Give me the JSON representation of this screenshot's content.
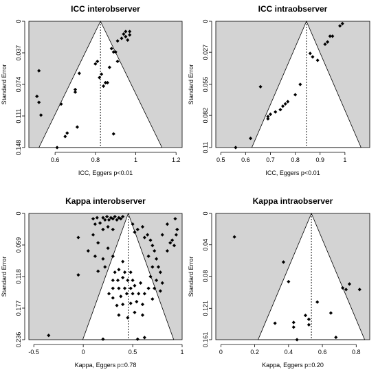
{
  "chart_data": [
    {
      "type": "scatter",
      "title": "ICC interobserver",
      "xlabel": "ICC, Eggers p<0.01",
      "ylabel": "Standard Error",
      "xlim": [
        0.47,
        1.23
      ],
      "ylim": [
        0.148,
        0
      ],
      "y_reversed": true,
      "xticks": [
        0.6,
        0.8,
        1.0,
        1.2
      ],
      "xtick_labels": [
        "0.6",
        "0.8",
        "1",
        "1.2"
      ],
      "yticks": [
        0,
        0.037,
        0.074,
        0.111,
        0.148
      ],
      "ytick_labels": [
        "0",
        "0.037",
        "0.074",
        "0.111",
        "0.148"
      ],
      "summary_estimate": 0.825,
      "funnel_base_range": [
        0.52,
        1.13
      ],
      "points": [
        {
          "x": 0.52,
          "y": 0.058
        },
        {
          "x": 0.51,
          "y": 0.088
        },
        {
          "x": 0.52,
          "y": 0.095
        },
        {
          "x": 0.53,
          "y": 0.11
        },
        {
          "x": 0.61,
          "y": 0.148
        },
        {
          "x": 0.63,
          "y": 0.097
        },
        {
          "x": 0.65,
          "y": 0.135
        },
        {
          "x": 0.66,
          "y": 0.131
        },
        {
          "x": 0.7,
          "y": 0.08
        },
        {
          "x": 0.7,
          "y": 0.083
        },
        {
          "x": 0.71,
          "y": 0.124
        },
        {
          "x": 0.72,
          "y": 0.061
        },
        {
          "x": 0.8,
          "y": 0.05
        },
        {
          "x": 0.81,
          "y": 0.047
        },
        {
          "x": 0.82,
          "y": 0.066
        },
        {
          "x": 0.83,
          "y": 0.062
        },
        {
          "x": 0.84,
          "y": 0.076
        },
        {
          "x": 0.85,
          "y": 0.072
        },
        {
          "x": 0.86,
          "y": 0.072
        },
        {
          "x": 0.87,
          "y": 0.054
        },
        {
          "x": 0.88,
          "y": 0.032
        },
        {
          "x": 0.89,
          "y": 0.036
        },
        {
          "x": 0.9,
          "y": 0.036
        },
        {
          "x": 0.91,
          "y": 0.023
        },
        {
          "x": 0.91,
          "y": 0.047
        },
        {
          "x": 0.89,
          "y": 0.132
        },
        {
          "x": 0.93,
          "y": 0.02
        },
        {
          "x": 0.94,
          "y": 0.015
        },
        {
          "x": 0.95,
          "y": 0.012
        },
        {
          "x": 0.95,
          "y": 0.018
        },
        {
          "x": 0.96,
          "y": 0.022
        },
        {
          "x": 0.97,
          "y": 0.012
        },
        {
          "x": 0.97,
          "y": 0.016
        }
      ]
    },
    {
      "type": "scatter",
      "title": "ICC intraobserver",
      "xlabel": "ICC, Eggers p<0.01",
      "ylabel": "Standard Error",
      "xlim": [
        0.48,
        1.1
      ],
      "ylim": [
        0.11,
        0
      ],
      "y_reversed": true,
      "xticks": [
        0.5,
        0.6,
        0.7,
        0.8,
        0.9,
        1.0
      ],
      "xtick_labels": [
        "0.5",
        "0.6",
        "0.7",
        "0.8",
        "0.9",
        "1"
      ],
      "yticks": [
        0,
        0.027,
        0.055,
        0.082,
        0.11
      ],
      "ytick_labels": [
        "0",
        "0.027",
        "0.055",
        "0.082",
        "0.11"
      ],
      "summary_estimate": 0.845,
      "funnel_base_range": [
        0.625,
        1.065
      ],
      "points": [
        {
          "x": 0.56,
          "y": 0.11
        },
        {
          "x": 0.62,
          "y": 0.102
        },
        {
          "x": 0.66,
          "y": 0.057
        },
        {
          "x": 0.69,
          "y": 0.083
        },
        {
          "x": 0.69,
          "y": 0.085
        },
        {
          "x": 0.7,
          "y": 0.081
        },
        {
          "x": 0.72,
          "y": 0.079
        },
        {
          "x": 0.74,
          "y": 0.077
        },
        {
          "x": 0.75,
          "y": 0.074
        },
        {
          "x": 0.76,
          "y": 0.072
        },
        {
          "x": 0.77,
          "y": 0.07
        },
        {
          "x": 0.8,
          "y": 0.064
        },
        {
          "x": 0.82,
          "y": 0.055
        },
        {
          "x": 0.86,
          "y": 0.028
        },
        {
          "x": 0.87,
          "y": 0.031
        },
        {
          "x": 0.89,
          "y": 0.034
        },
        {
          "x": 0.92,
          "y": 0.02
        },
        {
          "x": 0.93,
          "y": 0.018
        },
        {
          "x": 0.94,
          "y": 0.013
        },
        {
          "x": 0.95,
          "y": 0.013
        },
        {
          "x": 0.98,
          "y": 0.004
        },
        {
          "x": 0.99,
          "y": 0.002
        }
      ]
    },
    {
      "type": "scatter",
      "title": "Kappa interobserver",
      "xlabel": "Kappa, Eggers p=0.78",
      "ylabel": "Standard Error",
      "xlim": [
        -0.55,
        1.0
      ],
      "ylim": [
        0.236,
        0
      ],
      "y_reversed": true,
      "xticks": [
        -0.5,
        0,
        0.5,
        1.0
      ],
      "xtick_labels": [
        "-0.5",
        "0",
        "0.5",
        "1"
      ],
      "yticks": [
        0,
        0.059,
        0.118,
        0.177,
        0.236
      ],
      "ytick_labels": [
        "0",
        "0.059",
        "0.118",
        "0.177",
        "0.236"
      ],
      "summary_estimate": 0.455,
      "funnel_base_range": [
        -0.005,
        0.915
      ],
      "points": [
        {
          "x": -0.35,
          "y": 0.228
        },
        {
          "x": -0.05,
          "y": 0.045
        },
        {
          "x": -0.05,
          "y": 0.115
        },
        {
          "x": 0.1,
          "y": 0.01
        },
        {
          "x": 0.12,
          "y": 0.02
        },
        {
          "x": 0.14,
          "y": 0.008
        },
        {
          "x": 0.17,
          "y": 0.018
        },
        {
          "x": 0.2,
          "y": 0.008
        },
        {
          "x": 0.22,
          "y": 0.012
        },
        {
          "x": 0.24,
          "y": 0.006
        },
        {
          "x": 0.26,
          "y": 0.012
        },
        {
          "x": 0.28,
          "y": 0.008
        },
        {
          "x": 0.3,
          "y": 0.01
        },
        {
          "x": 0.32,
          "y": 0.006
        },
        {
          "x": 0.34,
          "y": 0.012
        },
        {
          "x": 0.36,
          "y": 0.008
        },
        {
          "x": 0.38,
          "y": 0.01
        },
        {
          "x": 0.4,
          "y": 0.006
        },
        {
          "x": 0.2,
          "y": 0.03
        },
        {
          "x": 0.25,
          "y": 0.025
        },
        {
          "x": 0.3,
          "y": 0.03
        },
        {
          "x": 0.1,
          "y": 0.04
        },
        {
          "x": 0.15,
          "y": 0.055
        },
        {
          "x": 0.05,
          "y": 0.07
        },
        {
          "x": 0.12,
          "y": 0.08
        },
        {
          "x": 0.2,
          "y": 0.085
        },
        {
          "x": 0.25,
          "y": 0.065
        },
        {
          "x": 0.3,
          "y": 0.08
        },
        {
          "x": 0.22,
          "y": 0.1
        },
        {
          "x": 0.15,
          "y": 0.108
        },
        {
          "x": 0.32,
          "y": 0.11
        },
        {
          "x": 0.36,
          "y": 0.105
        },
        {
          "x": 0.4,
          "y": 0.09
        },
        {
          "x": 0.42,
          "y": 0.11
        },
        {
          "x": 0.3,
          "y": 0.125
        },
        {
          "x": 0.35,
          "y": 0.125
        },
        {
          "x": 0.4,
          "y": 0.12
        },
        {
          "x": 0.45,
          "y": 0.125
        },
        {
          "x": 0.48,
          "y": 0.11
        },
        {
          "x": 0.5,
          "y": 0.125
        },
        {
          "x": 0.3,
          "y": 0.14
        },
        {
          "x": 0.36,
          "y": 0.14
        },
        {
          "x": 0.42,
          "y": 0.14
        },
        {
          "x": 0.48,
          "y": 0.14
        },
        {
          "x": 0.52,
          "y": 0.135
        },
        {
          "x": 0.58,
          "y": 0.13
        },
        {
          "x": 0.26,
          "y": 0.15
        },
        {
          "x": 0.3,
          "y": 0.158
        },
        {
          "x": 0.38,
          "y": 0.155
        },
        {
          "x": 0.44,
          "y": 0.15
        },
        {
          "x": 0.5,
          "y": 0.15
        },
        {
          "x": 0.56,
          "y": 0.15
        },
        {
          "x": 0.62,
          "y": 0.15
        },
        {
          "x": 0.34,
          "y": 0.172
        },
        {
          "x": 0.4,
          "y": 0.17
        },
        {
          "x": 0.48,
          "y": 0.168
        },
        {
          "x": 0.54,
          "y": 0.165
        },
        {
          "x": 0.6,
          "y": 0.17
        },
        {
          "x": 0.36,
          "y": 0.19
        },
        {
          "x": 0.45,
          "y": 0.195
        },
        {
          "x": 0.52,
          "y": 0.185
        },
        {
          "x": 0.6,
          "y": 0.19
        },
        {
          "x": 0.2,
          "y": 0.235
        },
        {
          "x": 0.55,
          "y": 0.235
        },
        {
          "x": 0.62,
          "y": 0.232
        },
        {
          "x": 0.5,
          "y": 0.02
        },
        {
          "x": 0.52,
          "y": 0.035
        },
        {
          "x": 0.55,
          "y": 0.03
        },
        {
          "x": 0.6,
          "y": 0.025
        },
        {
          "x": 0.62,
          "y": 0.045
        },
        {
          "x": 0.65,
          "y": 0.04
        },
        {
          "x": 0.68,
          "y": 0.05
        },
        {
          "x": 0.7,
          "y": 0.06
        },
        {
          "x": 0.72,
          "y": 0.07
        },
        {
          "x": 0.66,
          "y": 0.08
        },
        {
          "x": 0.74,
          "y": 0.085
        },
        {
          "x": 0.7,
          "y": 0.1
        },
        {
          "x": 0.76,
          "y": 0.1
        },
        {
          "x": 0.78,
          "y": 0.11
        },
        {
          "x": 0.68,
          "y": 0.118
        },
        {
          "x": 0.74,
          "y": 0.125
        },
        {
          "x": 0.8,
          "y": 0.13
        },
        {
          "x": 0.66,
          "y": 0.14
        },
        {
          "x": 0.72,
          "y": 0.14
        },
        {
          "x": 0.78,
          "y": 0.145
        },
        {
          "x": 0.7,
          "y": 0.16
        },
        {
          "x": 0.85,
          "y": 0.07
        },
        {
          "x": 0.88,
          "y": 0.055
        },
        {
          "x": 0.9,
          "y": 0.05
        },
        {
          "x": 0.92,
          "y": 0.06
        },
        {
          "x": 0.94,
          "y": 0.04
        },
        {
          "x": 0.95,
          "y": 0.03
        },
        {
          "x": 0.93,
          "y": 0.01
        },
        {
          "x": 0.85,
          "y": 0.02
        },
        {
          "x": 0.8,
          "y": 0.04
        }
      ]
    },
    {
      "type": "scatter",
      "title": "Kappa intraobserver",
      "xlabel": "Kappa, Eggers p=0.20",
      "ylabel": "Standard Error",
      "xlim": [
        -0.03,
        0.88
      ],
      "ylim": [
        0.161,
        0
      ],
      "y_reversed": true,
      "xticks": [
        0,
        0.2,
        0.4,
        0.6,
        0.8
      ],
      "xtick_labels": [
        "0",
        "0.2",
        "0.4",
        "0.6",
        "0.8"
      ],
      "yticks": [
        0,
        0.04,
        0.08,
        0.121,
        0.161
      ],
      "ytick_labels": [
        "0",
        "0.04",
        "0.08",
        "0.121",
        "0.161"
      ],
      "summary_estimate": 0.535,
      "funnel_base_range": [
        0.22,
        0.85
      ],
      "points": [
        {
          "x": 0.08,
          "y": 0.03
        },
        {
          "x": 0.32,
          "y": 0.14
        },
        {
          "x": 0.37,
          "y": 0.062
        },
        {
          "x": 0.4,
          "y": 0.087
        },
        {
          "x": 0.43,
          "y": 0.139
        },
        {
          "x": 0.43,
          "y": 0.145
        },
        {
          "x": 0.45,
          "y": 0.161
        },
        {
          "x": 0.5,
          "y": 0.13
        },
        {
          "x": 0.52,
          "y": 0.135
        },
        {
          "x": 0.52,
          "y": 0.142
        },
        {
          "x": 0.57,
          "y": 0.113
        },
        {
          "x": 0.65,
          "y": 0.127
        },
        {
          "x": 0.68,
          "y": 0.158
        },
        {
          "x": 0.72,
          "y": 0.095
        },
        {
          "x": 0.74,
          "y": 0.097
        },
        {
          "x": 0.76,
          "y": 0.09
        },
        {
          "x": 0.82,
          "y": 0.097
        }
      ]
    }
  ]
}
